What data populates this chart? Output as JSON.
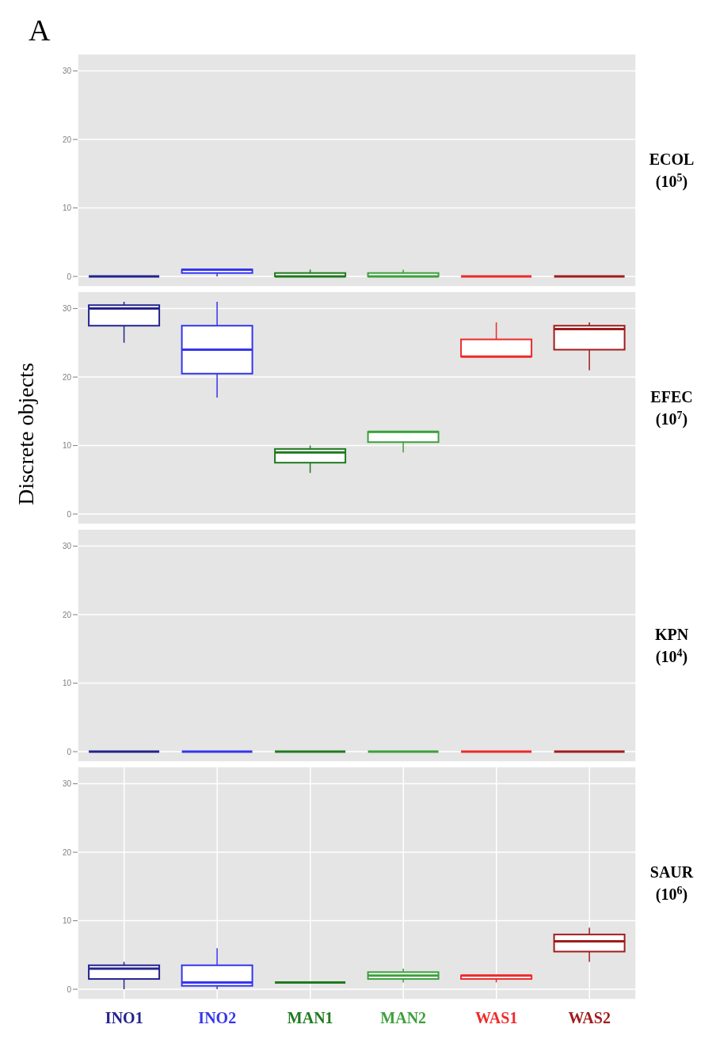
{
  "chart_data": [
    {
      "type": "box",
      "title": "A",
      "annotations": [
        "ECOL (10$^{5}$)"
      ],
      "categories": [
        null,
        null,
        null,
        null,
        null,
        null
      ],
      "colors": [
        "#23238f",
        "#3535ee",
        "#1f7a1f",
        "#3ca03c",
        "#ee2a2a",
        "#a01c1c"
      ],
      "ylim": [
        -1.5,
        32.5
      ],
      "yticks": [
        0,
        10,
        20,
        30
      ],
      "grid": true,
      "tick_labels": "y",
      "boxes": [
        {
          "low": 0,
          "q1": 0,
          "median": 0,
          "q3": 0,
          "high": 0
        },
        {
          "low": 0,
          "q1": 0.5,
          "median": 1,
          "q3": 1,
          "high": 1
        },
        {
          "low": 0,
          "q1": 0,
          "median": 0,
          "q3": 0.5,
          "high": 1
        },
        {
          "low": 0,
          "q1": 0,
          "median": 0,
          "q3": 0.5,
          "high": 1
        },
        {
          "low": 0,
          "q1": 0,
          "median": 0,
          "q3": 0,
          "high": 0
        },
        {
          "low": 0,
          "q1": 0,
          "median": 0,
          "q3": 0,
          "high": 0
        }
      ]
    },
    {
      "type": "box",
      "annotations": [
        "EFEC (10$^{7}$)"
      ],
      "ylabel": "Discrete objects",
      "categories": [
        null,
        null,
        null,
        null,
        null,
        null
      ],
      "colors": [
        "#23238f",
        "#3535ee",
        "#1f7a1f",
        "#3ca03c",
        "#ee2a2a",
        "#a01c1c"
      ],
      "ylim": [
        -1.5,
        32.5
      ],
      "yticks": [
        0,
        10,
        20,
        30
      ],
      "grid": true,
      "tick_labels": "y",
      "boxes": [
        {
          "low": 25,
          "q1": 27.5,
          "median": 30,
          "q3": 30.5,
          "high": 31
        },
        {
          "low": 17,
          "q1": 20.5,
          "median": 24,
          "q3": 27.5,
          "high": 31
        },
        {
          "low": 6,
          "q1": 7.5,
          "median": 9,
          "q3": 9.5,
          "high": 10
        },
        {
          "low": 9,
          "q1": 10.5,
          "median": 12,
          "q3": 12,
          "high": 12
        },
        {
          "low": 23,
          "q1": 23,
          "median": 23,
          "q3": 25.5,
          "high": 28
        },
        {
          "low": 21,
          "q1": 24,
          "median": 27,
          "q3": 27.5,
          "high": 28
        }
      ]
    },
    {
      "type": "box",
      "annotations": [
        "KPN (10$^{4}$)"
      ],
      "categories": [
        null,
        null,
        null,
        null,
        null,
        null
      ],
      "colors": [
        "#23238f",
        "#3535ee",
        "#1f7a1f",
        "#3ca03c",
        "#ee2a2a",
        "#a01c1c"
      ],
      "ylim": [
        -1.5,
        32.5
      ],
      "yticks": [
        0,
        10,
        20,
        30
      ],
      "grid": true,
      "tick_labels": "y",
      "boxes": [
        {
          "low": 0,
          "q1": 0,
          "median": 0,
          "q3": 0,
          "high": 0
        },
        {
          "low": 0,
          "q1": 0,
          "median": 0,
          "q3": 0,
          "high": 0
        },
        {
          "low": 0,
          "q1": 0,
          "median": 0,
          "q3": 0,
          "high": 0
        },
        {
          "low": 0,
          "q1": 0,
          "median": 0,
          "q3": 0,
          "high": 0
        },
        {
          "low": 0,
          "q1": 0,
          "median": 0,
          "q3": 0,
          "high": 0
        },
        {
          "low": 0,
          "q1": 0,
          "median": 0,
          "q3": 0,
          "high": 0
        }
      ]
    },
    {
      "type": "box",
      "annotations": [
        "SAUR (10$^{6}$)"
      ],
      "categories": [
        "INO1",
        "INO2",
        "MAN1",
        "MAN2",
        "WAS1",
        "WAS2"
      ],
      "colors": [
        "#23238f",
        "#3535ee",
        "#1f7a1f",
        "#3ca03c",
        "#ee2a2a",
        "#a01c1c"
      ],
      "ylim": [
        -1.5,
        32.5
      ],
      "yticks": [
        0,
        10,
        20,
        30
      ],
      "grid": true,
      "boxes": [
        {
          "low": 0,
          "q1": 1.5,
          "median": 3,
          "q3": 3.5,
          "high": 4
        },
        {
          "low": 0,
          "q1": 0.5,
          "median": 1,
          "q3": 3.5,
          "high": 6
        },
        {
          "low": 1,
          "q1": 1,
          "median": 1,
          "q3": 1,
          "high": 1
        },
        {
          "low": 1,
          "q1": 1.5,
          "median": 2,
          "q3": 2.5,
          "high": 3
        },
        {
          "low": 1,
          "q1": 1.5,
          "median": 2,
          "q3": 2,
          "high": 2
        },
        {
          "low": 4,
          "q1": 5.5,
          "median": 7,
          "q3": 8,
          "high": 9
        }
      ]
    }
  ]
}
